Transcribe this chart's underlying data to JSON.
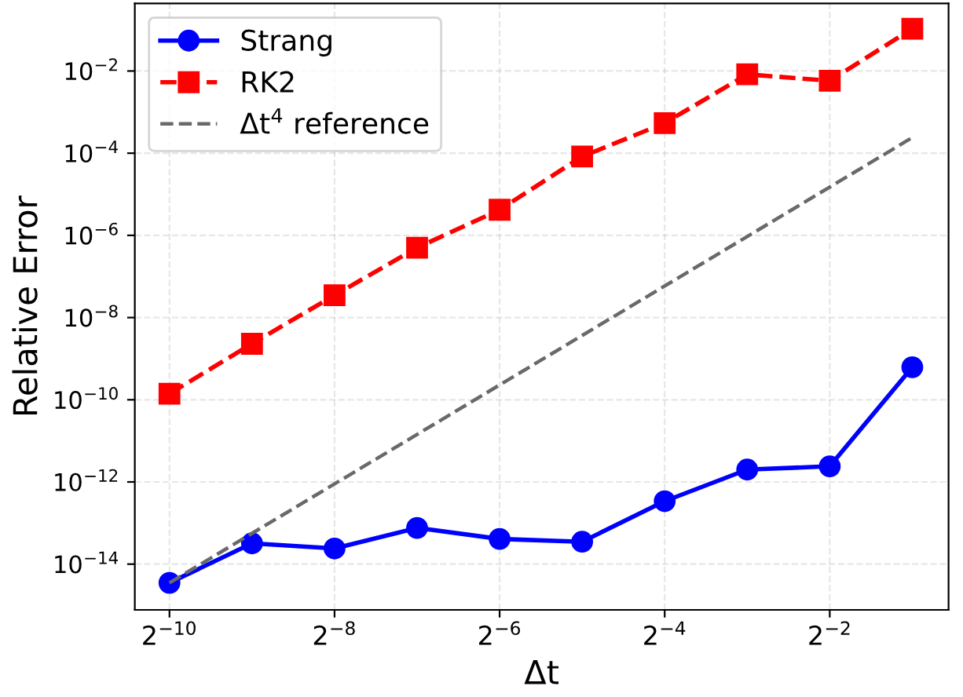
{
  "chart_data": {
    "type": "line",
    "xlabel": "Δt",
    "ylabel": "Relative Error",
    "log": "xy",
    "grid": true,
    "legend": "top left",
    "x": [
      0.0009765625,
      0.001953125,
      0.00390625,
      0.0078125,
      0.015625,
      0.03125,
      0.0625,
      0.125,
      0.25,
      0.5
    ],
    "series": [
      {
        "name": "Strang",
        "color": "#0000ff",
        "marker": "circle",
        "line_style": "solid",
        "values": [
          3.5e-15,
          3.2e-14,
          2.4e-14,
          7.6e-14,
          4.1e-14,
          3.5e-14,
          3.4e-13,
          2e-12,
          2.4e-12,
          6.2e-10
        ]
      },
      {
        "name": "RK2",
        "color": "#ff0000",
        "marker": "square",
        "line_style": "dashed",
        "values": [
          1.4e-10,
          2.3e-09,
          3.5e-08,
          5e-07,
          4.2e-06,
          8.3e-05,
          0.00054,
          0.0083,
          0.0058,
          0.107
        ]
      },
      {
        "name": "Δt$^{4}$ reference",
        "color": "#696969",
        "marker": "none",
        "line_style": "dashed",
        "x": [
          0.0009765625,
          0.5
        ],
        "values": [
          3.5e-15,
          0.00024
        ]
      }
    ],
    "xlim": [
      0.00073,
      0.678
    ],
    "ylim": [
      7.7e-16,
      0.44
    ],
    "xticks": [
      {
        "value": 0.0009765625,
        "label": "2$^{−10}$"
      },
      {
        "value": 0.00390625,
        "label": "2$^{−8}$"
      },
      {
        "value": 0.015625,
        "label": "2$^{−6}$"
      },
      {
        "value": 0.0625,
        "label": "2$^{−4}$"
      },
      {
        "value": 0.25,
        "label": "2$^{−2}$"
      }
    ],
    "yticks": [
      {
        "value": 1e-14,
        "label": "10$^{−14}$"
      },
      {
        "value": 1e-12,
        "label": "10$^{−12}$"
      },
      {
        "value": 1e-10,
        "label": "10$^{−10}$"
      },
      {
        "value": 1e-08,
        "label": "10$^{−8}$"
      },
      {
        "value": 1e-06,
        "label": "10$^{−6}$"
      },
      {
        "value": 0.0001,
        "label": "10$^{−4}$"
      },
      {
        "value": 0.01,
        "label": "10$^{−2}$"
      }
    ]
  }
}
